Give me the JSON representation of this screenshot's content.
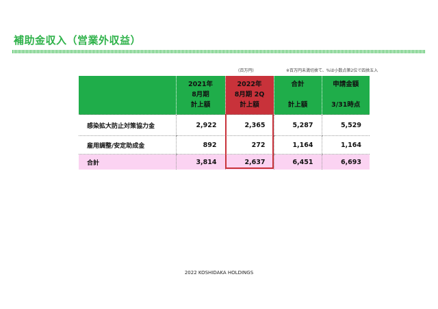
{
  "page": {
    "title": "補助金収入（営業外収益）",
    "unit_note": "(百万円)",
    "rounding_note": "※百万円未満切捨て、%は小数点第2位で四捨五入",
    "footer": "2022 KOSHIDAKA HOLDINGS"
  },
  "table": {
    "columns": [
      {
        "lines": [
          "",
          "",
          ""
        ],
        "highlight": false
      },
      {
        "lines": [
          "2021年",
          "8月期",
          "計上額"
        ],
        "highlight": false
      },
      {
        "lines": [
          "2022年",
          "8月期 2Q",
          "計上額"
        ],
        "highlight": true
      },
      {
        "lines": [
          "合計",
          "",
          "計上額"
        ],
        "highlight": false
      },
      {
        "lines": [
          "申請金額",
          "",
          "3/31時点"
        ],
        "highlight": false
      }
    ],
    "rows": [
      {
        "label": "感染拡大防止対策協力金",
        "values": [
          "2,922",
          "2,365",
          "5,287",
          "5,529"
        ]
      },
      {
        "label": "雇用調整/安定助成金",
        "values": [
          "892",
          "272",
          "1,164",
          "1,164"
        ]
      },
      {
        "label": "合計",
        "values": [
          "3,814",
          "2,637",
          "6,451",
          "6,693"
        ]
      }
    ]
  },
  "colors": {
    "accent_green": "#1fad4a",
    "title_green": "#2fb24a",
    "highlight_red": "#c8323a",
    "total_row_pink": "#fbd3f2"
  }
}
